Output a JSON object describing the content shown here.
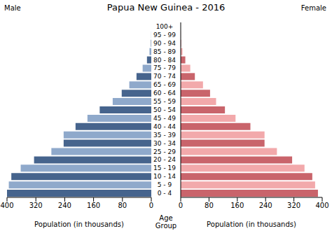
{
  "chart_data": {
    "type": "bar",
    "title": "Papua New Guinea - 2016",
    "orientation": "horizontal",
    "x_label": "Population (in thousands)",
    "y_label": "Age Group",
    "categories": [
      "0 - 4",
      "5 - 9",
      "10 - 14",
      "15 - 19",
      "20 - 24",
      "25 - 29",
      "30 - 34",
      "35 - 39",
      "40 - 44",
      "45 - 49",
      "50 - 54",
      "55 - 59",
      "60 - 64",
      "65 - 69",
      "70 - 74",
      "75 - 79",
      "80 - 84",
      "85 - 89",
      "90 - 94",
      "95 - 99",
      "100+"
    ],
    "xlim": [
      0,
      400
    ],
    "xticks": [
      0,
      80,
      160,
      240,
      320,
      400
    ],
    "grid": false,
    "series": [
      {
        "name": "Male",
        "values": [
          400,
          395,
          388,
          362,
          325,
          277,
          243,
          243,
          210,
          177,
          143,
          107,
          82,
          61,
          41,
          24,
          12,
          5,
          1,
          0.3,
          0
        ],
        "colors": [
          "#46648d",
          "#8fa9cb",
          "#46648d",
          "#8fa9cb",
          "#46648d",
          "#8fa9cb",
          "#46648d",
          "#8fa9cb",
          "#46648d",
          "#8fa9cb",
          "#46648d",
          "#8fa9cb",
          "#46648d",
          "#8fa9cb",
          "#46648d",
          "#8fa9cb",
          "#46648d",
          "#8fa9cb",
          "#46648d",
          "#8fa9cb",
          "#46648d"
        ]
      },
      {
        "name": "Female",
        "values": [
          388,
          380,
          372,
          350,
          315,
          272,
          237,
          237,
          197,
          155,
          125,
          100,
          83,
          63,
          40,
          27,
          13,
          5,
          1,
          0.3,
          0
        ],
        "colors": [
          "#c9646b",
          "#f2a9ab",
          "#c9646b",
          "#f2a9ab",
          "#c9646b",
          "#f2a9ab",
          "#c9646b",
          "#f2a9ab",
          "#c9646b",
          "#f2a9ab",
          "#c9646b",
          "#f2a9ab",
          "#c9646b",
          "#f2a9ab",
          "#c9646b",
          "#f2a9ab",
          "#c9646b",
          "#f2a9ab",
          "#c9646b",
          "#f2a9ab",
          "#c9646b"
        ]
      }
    ]
  }
}
